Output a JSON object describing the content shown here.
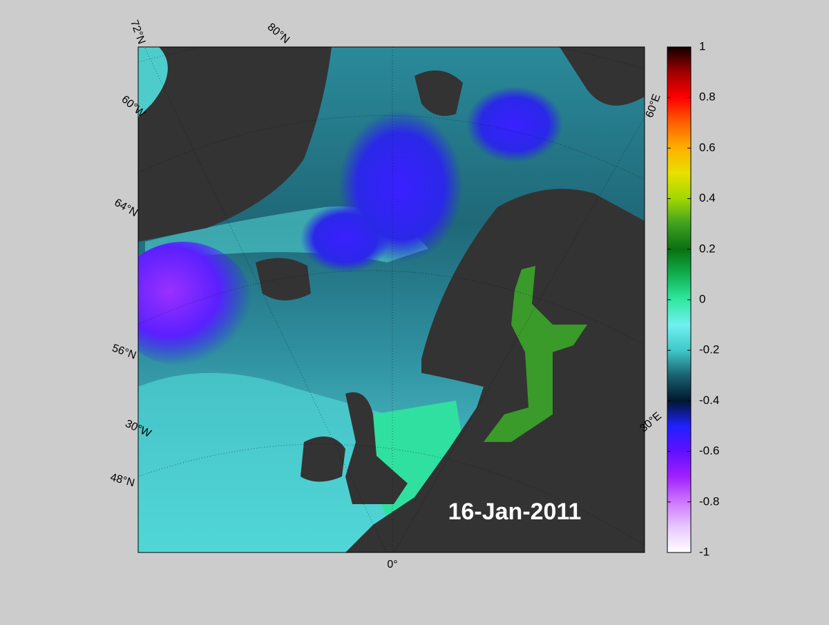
{
  "map": {
    "date": "16-Jan-2011",
    "labels": {
      "lat72": "72°N",
      "lat80": "80°N",
      "lon60w": "60°W",
      "lat64": "64°N",
      "lat56": "56°N",
      "lon30w": "30°W",
      "lat48": "48°N",
      "lon0": "0°",
      "lon60e": "60°E",
      "lon30e": "30°E"
    }
  },
  "colorbar": {
    "lim": [
      -1,
      1
    ],
    "ticks": [
      1,
      0.8,
      0.6,
      0.4,
      0.2,
      0,
      -0.2,
      -0.4,
      -0.6,
      -0.8,
      -1
    ],
    "colormap": [
      "#ffffff",
      "#e8c8ff",
      "#cc77ff",
      "#a020ff",
      "#6010ff",
      "#2020ff",
      "#001830",
      "#1a6070",
      "#40c8c8",
      "#70f0f0",
      "#30e8a0",
      "#10b050",
      "#0a7010",
      "#40a020",
      "#a0d800",
      "#e8e000",
      "#ffb000",
      "#ff6000",
      "#ff0000",
      "#a00000",
      "#100000"
    ]
  }
}
